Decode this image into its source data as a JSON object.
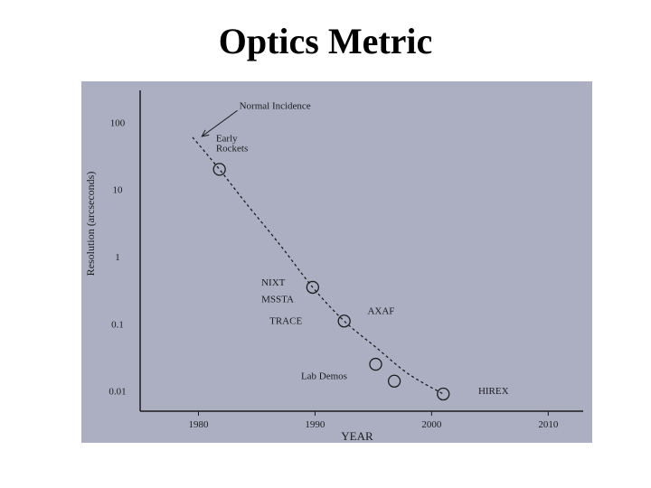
{
  "slide": {
    "title": "Optics Metric"
  },
  "chart_data": {
    "type": "scatter",
    "title": "",
    "xlabel": "YEAR",
    "ylabel": "Resolution (arcseconds)",
    "xlim": [
      1975,
      2013
    ],
    "ylim": [
      0.005,
      300
    ],
    "y_scale": "log",
    "x_ticks": [
      1980,
      1990,
      2000,
      2010
    ],
    "x_tick_labels": [
      "1980",
      "1990",
      "2000",
      "2010"
    ],
    "y_ticks": [
      100,
      10,
      1,
      0.1,
      0.01
    ],
    "y_tick_labels": [
      "100",
      "10",
      "1",
      "0.1",
      "0.01"
    ],
    "grid": false,
    "points": [
      {
        "x": 1981.8,
        "y": 20,
        "label": "Early Rockets"
      },
      {
        "x": 1989.8,
        "y": 0.35,
        "label": "NIXT"
      },
      {
        "x": 1992.5,
        "y": 0.11,
        "label": "TRACE"
      },
      {
        "x": 1995.2,
        "y": 0.025,
        "label": "Lab Demos"
      },
      {
        "x": 1996.8,
        "y": 0.014,
        "label": ""
      },
      {
        "x": 2001.0,
        "y": 0.009,
        "label": "HIREX"
      }
    ],
    "trend_line": {
      "style": "dashed",
      "x": [
        1979.5,
        1981.8,
        1984,
        1987,
        1989.8,
        1992.5,
        1995.2,
        1998,
        2001.0
      ],
      "y": [
        60,
        20,
        6.5,
        1.5,
        0.35,
        0.11,
        0.045,
        0.018,
        0.009
      ]
    },
    "annotations": [
      {
        "text": "Normal Incidence",
        "x": 1983.5,
        "y": 160,
        "arrow_to": {
          "x": 1980.3,
          "y": 62
        }
      },
      {
        "text": "Early",
        "x": 1981.5,
        "y": 52
      },
      {
        "text": "Rockets",
        "x": 1981.5,
        "y": 37
      },
      {
        "text": "NIXT",
        "x": 1985.4,
        "y": 0.37
      },
      {
        "text": "MSSTA",
        "x": 1985.4,
        "y": 0.21
      },
      {
        "text": "AXAF",
        "x": 1994.5,
        "y": 0.14
      },
      {
        "text": "TRACE",
        "x": 1986.1,
        "y": 0.1
      },
      {
        "text": "Lab Demos",
        "x": 1988.8,
        "y": 0.015
      },
      {
        "text": "HIREX",
        "x": 2004.0,
        "y": 0.009
      }
    ]
  }
}
